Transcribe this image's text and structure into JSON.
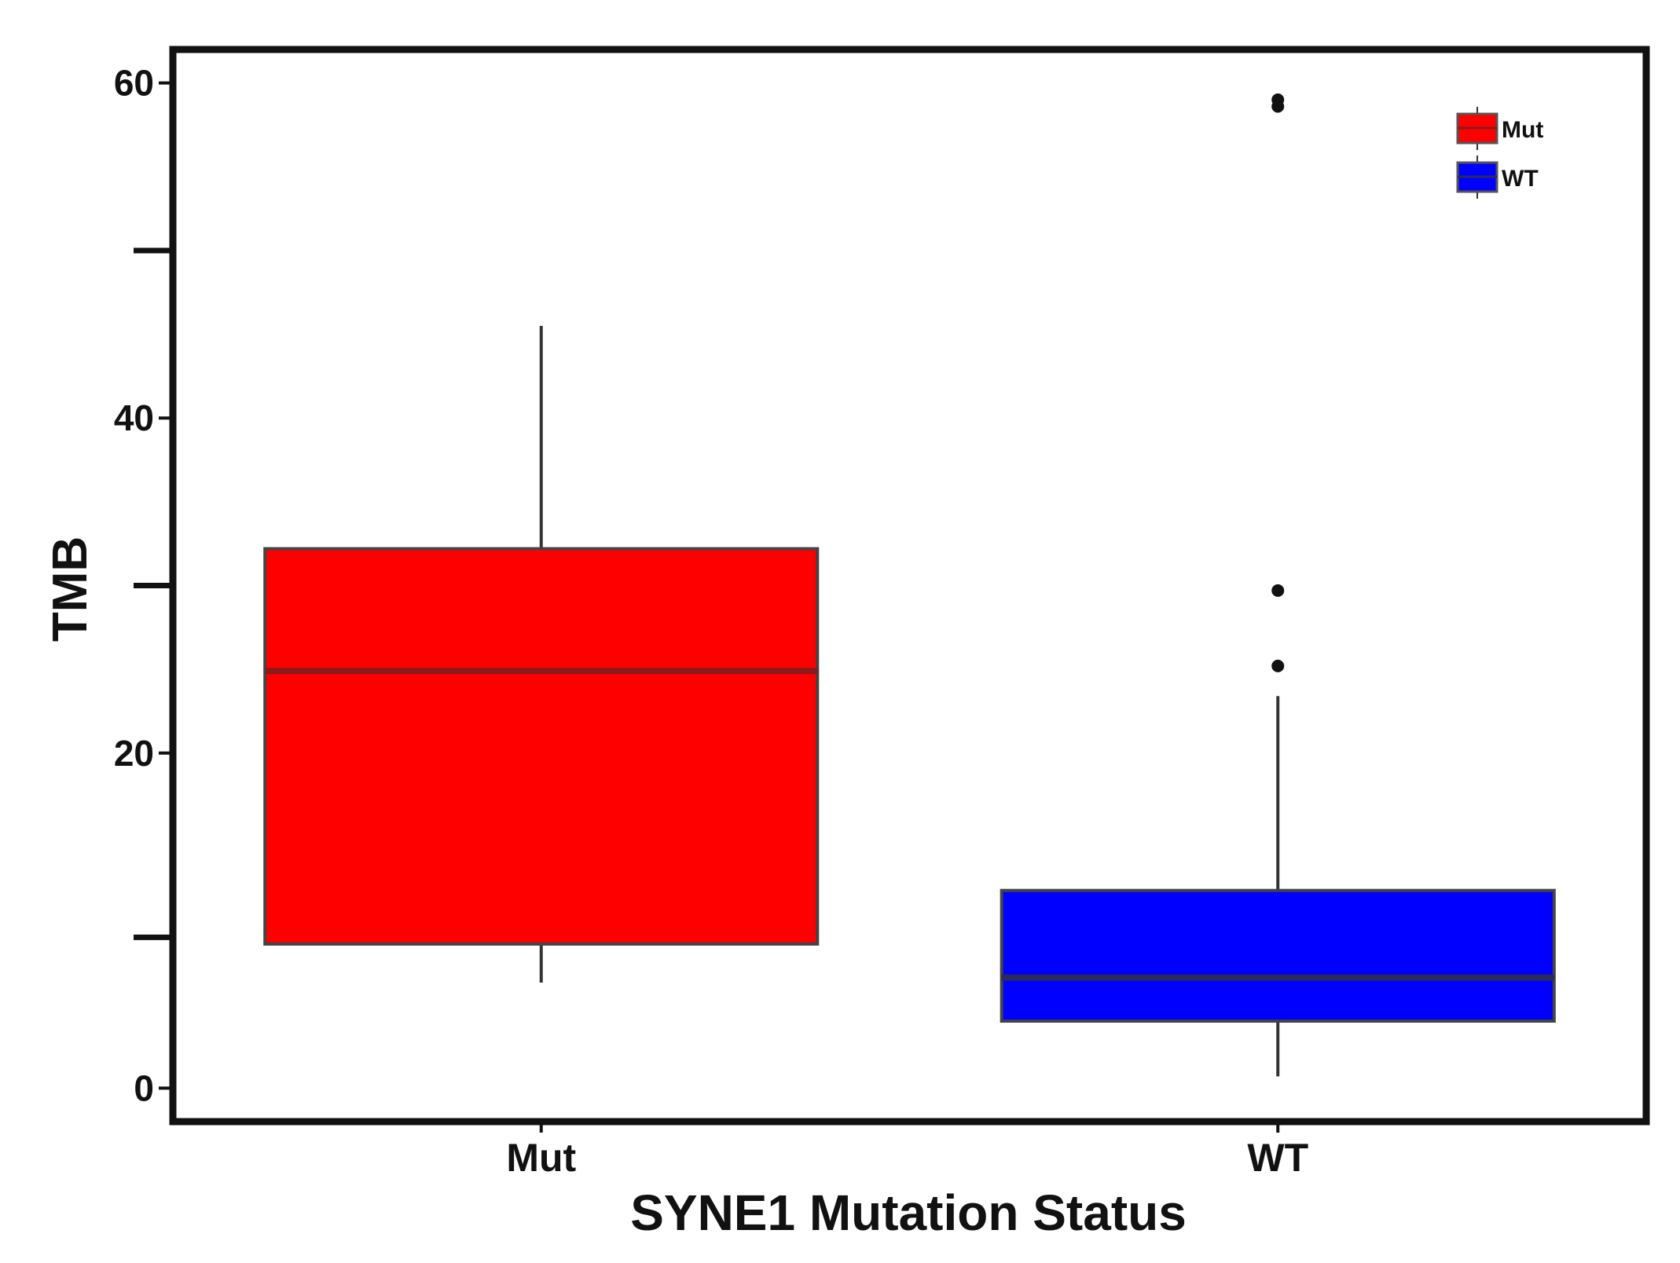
{
  "chart_data": {
    "type": "box",
    "title": "",
    "xlabel": "SYNE1 Mutation Status",
    "ylabel": "TMB",
    "ylim": [
      -2,
      62
    ],
    "yticks": [
      0,
      20,
      40,
      60
    ],
    "yticks_minor": [
      9,
      30,
      50
    ],
    "grid": false,
    "legend_position": "top-right",
    "categories": [
      "Mut",
      "WT"
    ],
    "series": [
      {
        "name": "Mut",
        "color": "#ff0000",
        "median_color": "#8b1a1a",
        "whisker_low": 6.3,
        "q1": 8.6,
        "median": 24.9,
        "q3": 32.2,
        "whisker_high": 45.5,
        "outliers": []
      },
      {
        "name": "WT",
        "color": "#0000ff",
        "median_color": "#2b2b55",
        "whisker_low": 0.7,
        "q1": 4.0,
        "median": 6.6,
        "q3": 11.8,
        "whisker_high": 23.4,
        "outliers": [
          58.6,
          59.0,
          29.7,
          25.2
        ]
      }
    ]
  }
}
